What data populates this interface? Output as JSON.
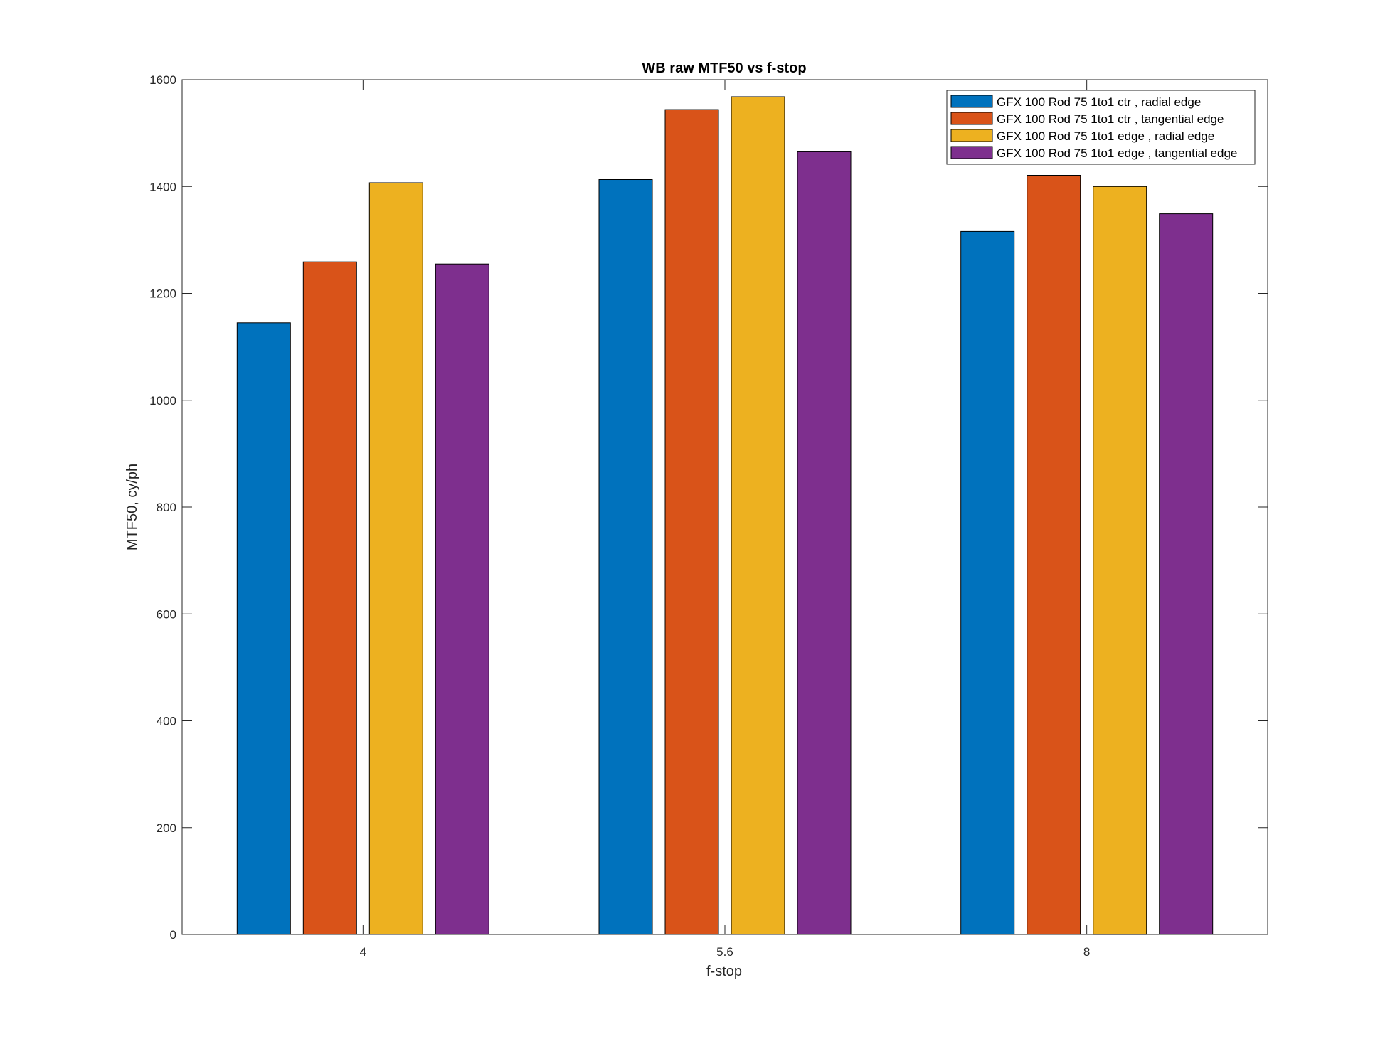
{
  "chart_data": {
    "type": "bar",
    "title": "WB raw MTF50 vs f-stop",
    "xlabel": "f-stop",
    "ylabel": "MTF50, cy/ph",
    "categories": [
      "4",
      "5.6",
      "8"
    ],
    "ylim": [
      0,
      1600
    ],
    "yticks": [
      "0",
      "200",
      "400",
      "600",
      "800",
      "1000",
      "1200",
      "1400",
      "1600"
    ],
    "legend_position": "top-right",
    "grid": false,
    "series": [
      {
        "name": "GFX 100 Rod 75 1to1 ctr , radial edge",
        "color": "#0072BD",
        "values": [
          1145,
          1413,
          1316
        ]
      },
      {
        "name": "GFX 100 Rod 75 1to1 ctr , tangential edge",
        "color": "#D95319",
        "values": [
          1259,
          1544,
          1421
        ]
      },
      {
        "name": "GFX 100 Rod 75 1to1 edge , radial edge",
        "color": "#EDB120",
        "values": [
          1407,
          1568,
          1400
        ]
      },
      {
        "name": "GFX 100 Rod 75 1to1 edge , tangential edge",
        "color": "#7E2F8E",
        "values": [
          1255,
          1465,
          1349
        ]
      }
    ]
  }
}
